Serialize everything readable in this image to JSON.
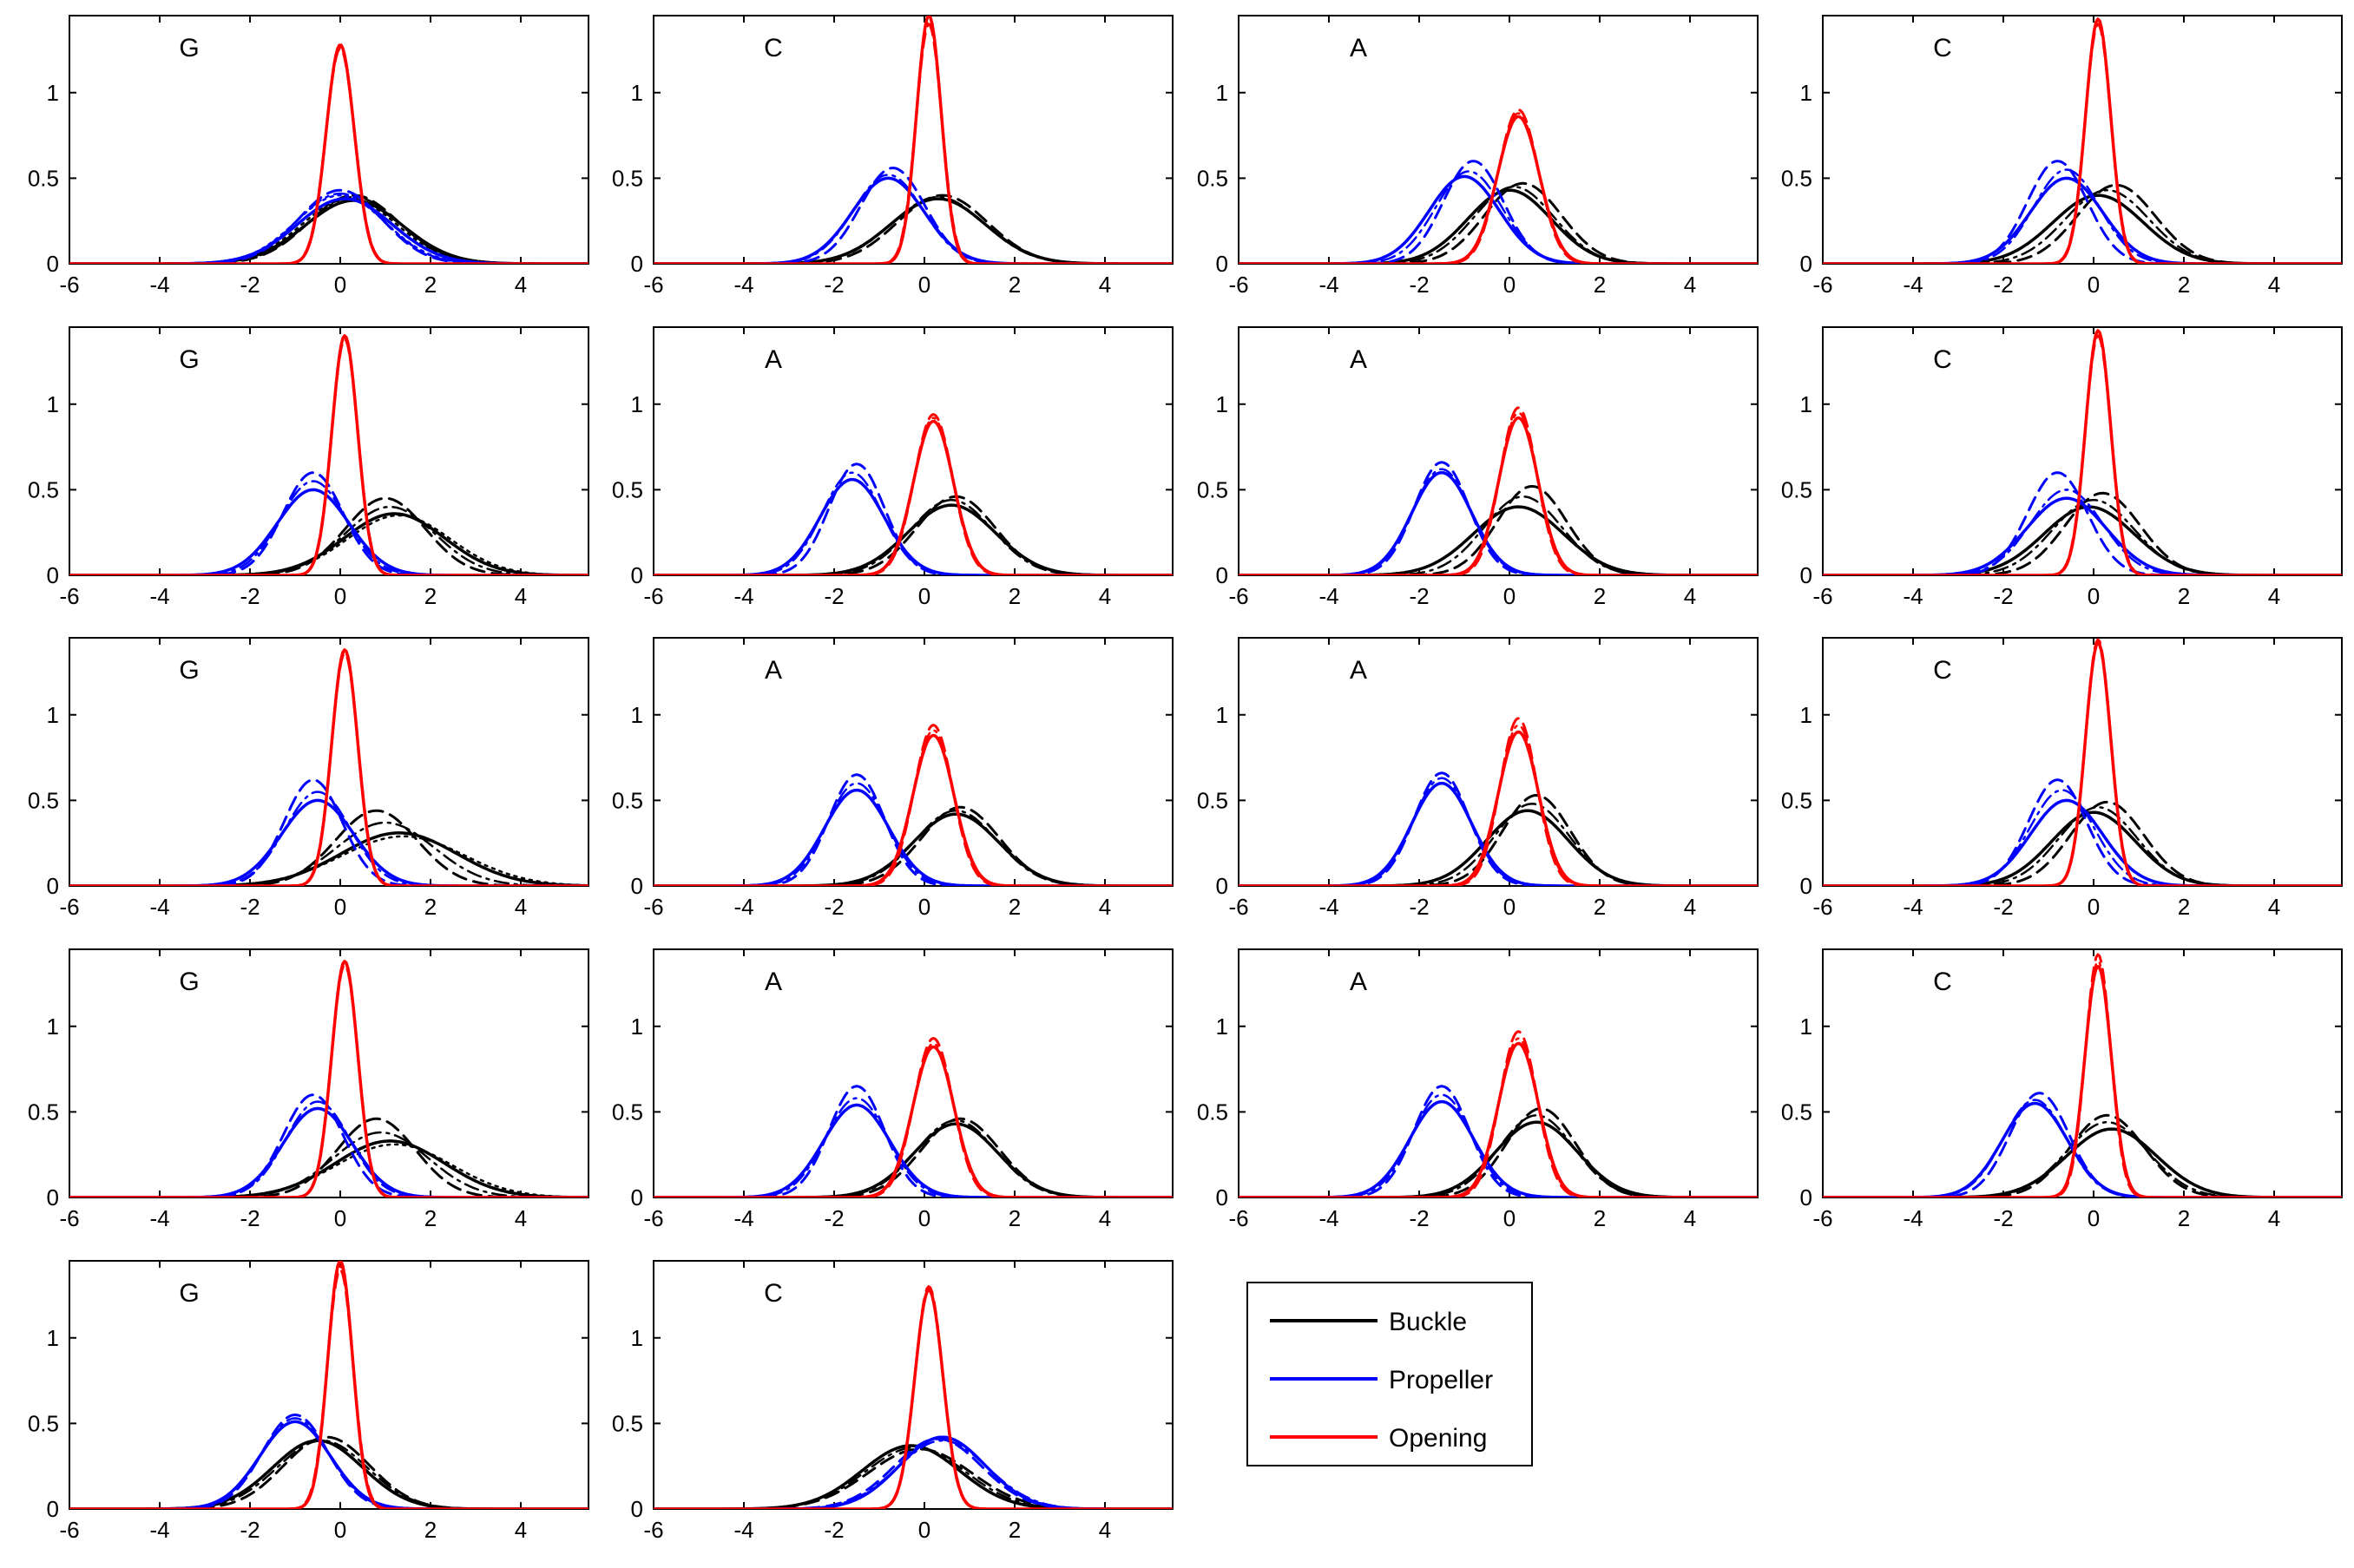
{
  "chart_data": {
    "type": "line",
    "layout": "5x4 grid of small-multiple panels (18 panels) with a shared legend",
    "xlim": [
      -6,
      5.5
    ],
    "ylim": [
      0,
      1.45
    ],
    "xticks": [
      -6,
      -4,
      -2,
      0,
      2,
      4
    ],
    "yticks": [
      0,
      0.5,
      1
    ],
    "xtick_labels": [
      "-6",
      "-4",
      "-2",
      "0",
      "2",
      "4"
    ],
    "ytick_labels": [
      "0",
      "0.5",
      "1"
    ],
    "grid": false,
    "legend": {
      "placement": "grid row 5, column 3",
      "entries": [
        {
          "name": "Buckle",
          "color": "#000000"
        },
        {
          "name": "Propeller",
          "color": "#0000ff"
        },
        {
          "name": "Opening",
          "color": "#ff0000"
        }
      ]
    },
    "colors": {
      "Buckle": "#000000",
      "Propeller": "#0000ff",
      "Opening": "#ff0000"
    },
    "line_styles_per_series": [
      "solid",
      "dashed",
      "dash-dot",
      "dotted"
    ],
    "panels": [
      {
        "label": "G",
        "series": {
          "Buckle": [
            {
              "mu": 0.3,
              "peak": 0.37
            },
            {
              "mu": 0.3,
              "peak": 0.4
            },
            {
              "mu": 0.3,
              "peak": 0.39
            },
            {
              "mu": 0.2,
              "peak": 0.38
            }
          ],
          "Propeller": [
            {
              "mu": 0.1,
              "peak": 0.38
            },
            {
              "mu": 0.0,
              "peak": 0.43
            },
            {
              "mu": 0.0,
              "peak": 0.41
            },
            {
              "mu": 0.0,
              "peak": 0.4
            }
          ],
          "Opening": [
            {
              "mu": 0.0,
              "peak": 1.28
            },
            {
              "mu": 0.0,
              "peak": 1.26
            },
            {
              "mu": 0.0,
              "peak": 1.27
            }
          ]
        }
      },
      {
        "label": "C",
        "series": {
          "Buckle": [
            {
              "mu": 0.3,
              "peak": 0.38
            },
            {
              "mu": 0.4,
              "peak": 0.4
            },
            {
              "mu": 0.3,
              "peak": 0.39
            }
          ],
          "Propeller": [
            {
              "mu": -0.8,
              "peak": 0.5
            },
            {
              "mu": -0.7,
              "peak": 0.56
            },
            {
              "mu": -0.8,
              "peak": 0.52
            }
          ],
          "Opening": [
            {
              "mu": 0.1,
              "peak": 1.45
            },
            {
              "mu": 0.1,
              "peak": 1.4
            },
            {
              "mu": 0.1,
              "peak": 1.42
            }
          ]
        }
      },
      {
        "label": "A",
        "series": {
          "Buckle": [
            {
              "mu": 0.0,
              "peak": 0.43
            },
            {
              "mu": 0.3,
              "peak": 0.47
            },
            {
              "mu": 0.1,
              "peak": 0.45
            }
          ],
          "Propeller": [
            {
              "mu": -1.0,
              "peak": 0.51
            },
            {
              "mu": -0.8,
              "peak": 0.6
            },
            {
              "mu": -0.9,
              "peak": 0.54
            }
          ],
          "Opening": [
            {
              "mu": 0.2,
              "peak": 0.86
            },
            {
              "mu": 0.2,
              "peak": 0.9
            },
            {
              "mu": 0.2,
              "peak": 0.88
            }
          ]
        }
      },
      {
        "label": "C",
        "series": {
          "Buckle": [
            {
              "mu": 0.1,
              "peak": 0.4
            },
            {
              "mu": 0.5,
              "peak": 0.46
            },
            {
              "mu": 0.3,
              "peak": 0.43
            }
          ],
          "Propeller": [
            {
              "mu": -0.6,
              "peak": 0.5
            },
            {
              "mu": -0.8,
              "peak": 0.6
            },
            {
              "mu": -0.6,
              "peak": 0.55
            }
          ],
          "Opening": [
            {
              "mu": 0.1,
              "peak": 1.43
            },
            {
              "mu": 0.1,
              "peak": 1.4
            },
            {
              "mu": 0.1,
              "peak": 1.42
            }
          ]
        }
      },
      {
        "label": "G",
        "series": {
          "Buckle": [
            {
              "mu": 1.2,
              "peak": 0.36
            },
            {
              "mu": 1.0,
              "peak": 0.45
            },
            {
              "mu": 1.1,
              "peak": 0.4
            },
            {
              "mu": 1.3,
              "peak": 0.35
            }
          ],
          "Propeller": [
            {
              "mu": -0.6,
              "peak": 0.5
            },
            {
              "mu": -0.6,
              "peak": 0.6
            },
            {
              "mu": -0.6,
              "peak": 0.55
            }
          ],
          "Opening": [
            {
              "mu": 0.1,
              "peak": 1.4
            },
            {
              "mu": 0.1,
              "peak": 1.38
            },
            {
              "mu": 0.1,
              "peak": 1.39
            }
          ]
        }
      },
      {
        "label": "A",
        "series": {
          "Buckle": [
            {
              "mu": 0.6,
              "peak": 0.41
            },
            {
              "mu": 0.7,
              "peak": 0.46
            },
            {
              "mu": 0.6,
              "peak": 0.44
            }
          ],
          "Propeller": [
            {
              "mu": -1.6,
              "peak": 0.56
            },
            {
              "mu": -1.5,
              "peak": 0.65
            },
            {
              "mu": -1.6,
              "peak": 0.6
            }
          ],
          "Opening": [
            {
              "mu": 0.2,
              "peak": 0.9
            },
            {
              "mu": 0.2,
              "peak": 0.94
            },
            {
              "mu": 0.2,
              "peak": 0.92
            }
          ]
        }
      },
      {
        "label": "A",
        "series": {
          "Buckle": [
            {
              "mu": 0.2,
              "peak": 0.4
            },
            {
              "mu": 0.5,
              "peak": 0.52
            },
            {
              "mu": 0.3,
              "peak": 0.46
            }
          ],
          "Propeller": [
            {
              "mu": -1.5,
              "peak": 0.6
            },
            {
              "mu": -1.5,
              "peak": 0.66
            },
            {
              "mu": -1.5,
              "peak": 0.62
            }
          ],
          "Opening": [
            {
              "mu": 0.2,
              "peak": 0.92
            },
            {
              "mu": 0.2,
              "peak": 0.98
            },
            {
              "mu": 0.2,
              "peak": 0.95
            }
          ]
        }
      },
      {
        "label": "C",
        "series": {
          "Buckle": [
            {
              "mu": -0.1,
              "peak": 0.4
            },
            {
              "mu": 0.2,
              "peak": 0.48
            },
            {
              "mu": 0.0,
              "peak": 0.44
            }
          ],
          "Propeller": [
            {
              "mu": -0.6,
              "peak": 0.45
            },
            {
              "mu": -0.8,
              "peak": 0.6
            },
            {
              "mu": -0.6,
              "peak": 0.5
            }
          ],
          "Opening": [
            {
              "mu": 0.1,
              "peak": 1.43
            },
            {
              "mu": 0.1,
              "peak": 1.4
            },
            {
              "mu": 0.1,
              "peak": 1.42
            }
          ]
        }
      },
      {
        "label": "G",
        "series": {
          "Buckle": [
            {
              "mu": 1.3,
              "peak": 0.31
            },
            {
              "mu": 0.8,
              "peak": 0.44
            },
            {
              "mu": 1.0,
              "peak": 0.37
            },
            {
              "mu": 1.4,
              "peak": 0.29
            }
          ],
          "Propeller": [
            {
              "mu": -0.5,
              "peak": 0.5
            },
            {
              "mu": -0.6,
              "peak": 0.62
            },
            {
              "mu": -0.5,
              "peak": 0.55
            }
          ],
          "Opening": [
            {
              "mu": 0.1,
              "peak": 1.38
            },
            {
              "mu": 0.1,
              "peak": 1.36
            },
            {
              "mu": 0.1,
              "peak": 1.37
            }
          ]
        }
      },
      {
        "label": "A",
        "series": {
          "Buckle": [
            {
              "mu": 0.7,
              "peak": 0.42
            },
            {
              "mu": 0.8,
              "peak": 0.46
            },
            {
              "mu": 0.7,
              "peak": 0.44
            }
          ],
          "Propeller": [
            {
              "mu": -1.5,
              "peak": 0.56
            },
            {
              "mu": -1.5,
              "peak": 0.65
            },
            {
              "mu": -1.5,
              "peak": 0.6
            }
          ],
          "Opening": [
            {
              "mu": 0.2,
              "peak": 0.88
            },
            {
              "mu": 0.2,
              "peak": 0.94
            },
            {
              "mu": 0.2,
              "peak": 0.91
            }
          ]
        }
      },
      {
        "label": "A",
        "series": {
          "Buckle": [
            {
              "mu": 0.4,
              "peak": 0.44
            },
            {
              "mu": 0.6,
              "peak": 0.53
            },
            {
              "mu": 0.5,
              "peak": 0.48
            }
          ],
          "Propeller": [
            {
              "mu": -1.5,
              "peak": 0.6
            },
            {
              "mu": -1.5,
              "peak": 0.66
            },
            {
              "mu": -1.5,
              "peak": 0.63
            }
          ],
          "Opening": [
            {
              "mu": 0.2,
              "peak": 0.9
            },
            {
              "mu": 0.2,
              "peak": 0.98
            },
            {
              "mu": 0.2,
              "peak": 0.94
            }
          ]
        }
      },
      {
        "label": "C",
        "series": {
          "Buckle": [
            {
              "mu": 0.0,
              "peak": 0.43
            },
            {
              "mu": 0.3,
              "peak": 0.49
            },
            {
              "mu": 0.1,
              "peak": 0.46
            }
          ],
          "Propeller": [
            {
              "mu": -0.6,
              "peak": 0.5
            },
            {
              "mu": -0.8,
              "peak": 0.62
            },
            {
              "mu": -0.7,
              "peak": 0.56
            }
          ],
          "Opening": [
            {
              "mu": 0.1,
              "peak": 1.42
            },
            {
              "mu": 0.1,
              "peak": 1.44
            },
            {
              "mu": 0.1,
              "peak": 1.43
            }
          ]
        }
      },
      {
        "label": "G",
        "series": {
          "Buckle": [
            {
              "mu": 1.1,
              "peak": 0.33
            },
            {
              "mu": 0.8,
              "peak": 0.46
            },
            {
              "mu": 0.9,
              "peak": 0.38
            },
            {
              "mu": 1.2,
              "peak": 0.31
            }
          ],
          "Propeller": [
            {
              "mu": -0.5,
              "peak": 0.52
            },
            {
              "mu": -0.6,
              "peak": 0.6
            },
            {
              "mu": -0.5,
              "peak": 0.56
            }
          ],
          "Opening": [
            {
              "mu": 0.1,
              "peak": 1.38
            },
            {
              "mu": 0.1,
              "peak": 1.36
            },
            {
              "mu": 0.1,
              "peak": 1.37
            }
          ]
        }
      },
      {
        "label": "A",
        "series": {
          "Buckle": [
            {
              "mu": 0.7,
              "peak": 0.43
            },
            {
              "mu": 0.8,
              "peak": 0.46
            },
            {
              "mu": 0.7,
              "peak": 0.45
            }
          ],
          "Propeller": [
            {
              "mu": -1.5,
              "peak": 0.54
            },
            {
              "mu": -1.5,
              "peak": 0.65
            },
            {
              "mu": -1.5,
              "peak": 0.58
            }
          ],
          "Opening": [
            {
              "mu": 0.2,
              "peak": 0.88
            },
            {
              "mu": 0.2,
              "peak": 0.93
            },
            {
              "mu": 0.2,
              "peak": 0.9
            }
          ]
        }
      },
      {
        "label": "A",
        "series": {
          "Buckle": [
            {
              "mu": 0.6,
              "peak": 0.44
            },
            {
              "mu": 0.7,
              "peak": 0.52
            },
            {
              "mu": 0.6,
              "peak": 0.48
            }
          ],
          "Propeller": [
            {
              "mu": -1.5,
              "peak": 0.56
            },
            {
              "mu": -1.5,
              "peak": 0.65
            },
            {
              "mu": -1.5,
              "peak": 0.6
            }
          ],
          "Opening": [
            {
              "mu": 0.2,
              "peak": 0.9
            },
            {
              "mu": 0.2,
              "peak": 0.97
            },
            {
              "mu": 0.2,
              "peak": 0.93
            }
          ]
        }
      },
      {
        "label": "C",
        "series": {
          "Buckle": [
            {
              "mu": 0.4,
              "peak": 0.4
            },
            {
              "mu": 0.3,
              "peak": 0.48
            },
            {
              "mu": 0.3,
              "peak": 0.44
            }
          ],
          "Propeller": [
            {
              "mu": -1.3,
              "peak": 0.55
            },
            {
              "mu": -1.2,
              "peak": 0.61
            },
            {
              "mu": -1.3,
              "peak": 0.57
            }
          ],
          "Opening": [
            {
              "mu": 0.1,
              "peak": 1.35
            },
            {
              "mu": 0.1,
              "peak": 1.42
            },
            {
              "mu": 0.1,
              "peak": 1.38
            }
          ]
        }
      },
      {
        "label": "G",
        "series": {
          "Buckle": [
            {
              "mu": -0.5,
              "peak": 0.4
            },
            {
              "mu": -0.3,
              "peak": 0.42
            },
            {
              "mu": -0.4,
              "peak": 0.4
            }
          ],
          "Propeller": [
            {
              "mu": -1.0,
              "peak": 0.51
            },
            {
              "mu": -1.0,
              "peak": 0.55
            },
            {
              "mu": -1.0,
              "peak": 0.53
            }
          ],
          "Opening": [
            {
              "mu": 0.0,
              "peak": 1.45
            },
            {
              "mu": 0.0,
              "peak": 1.4
            },
            {
              "mu": 0.0,
              "peak": 1.42
            }
          ]
        }
      },
      {
        "label": "C",
        "series": {
          "Buckle": [
            {
              "mu": -0.3,
              "peak": 0.37
            },
            {
              "mu": -0.1,
              "peak": 0.35
            },
            {
              "mu": -0.2,
              "peak": 0.36
            }
          ],
          "Propeller": [
            {
              "mu": 0.4,
              "peak": 0.42
            },
            {
              "mu": 0.3,
              "peak": 0.41
            },
            {
              "mu": 0.4,
              "peak": 0.4
            }
          ],
          "Opening": [
            {
              "mu": 0.1,
              "peak": 1.28
            },
            {
              "mu": 0.1,
              "peak": 1.3
            },
            {
              "mu": 0.1,
              "peak": 1.29
            }
          ]
        }
      }
    ]
  }
}
